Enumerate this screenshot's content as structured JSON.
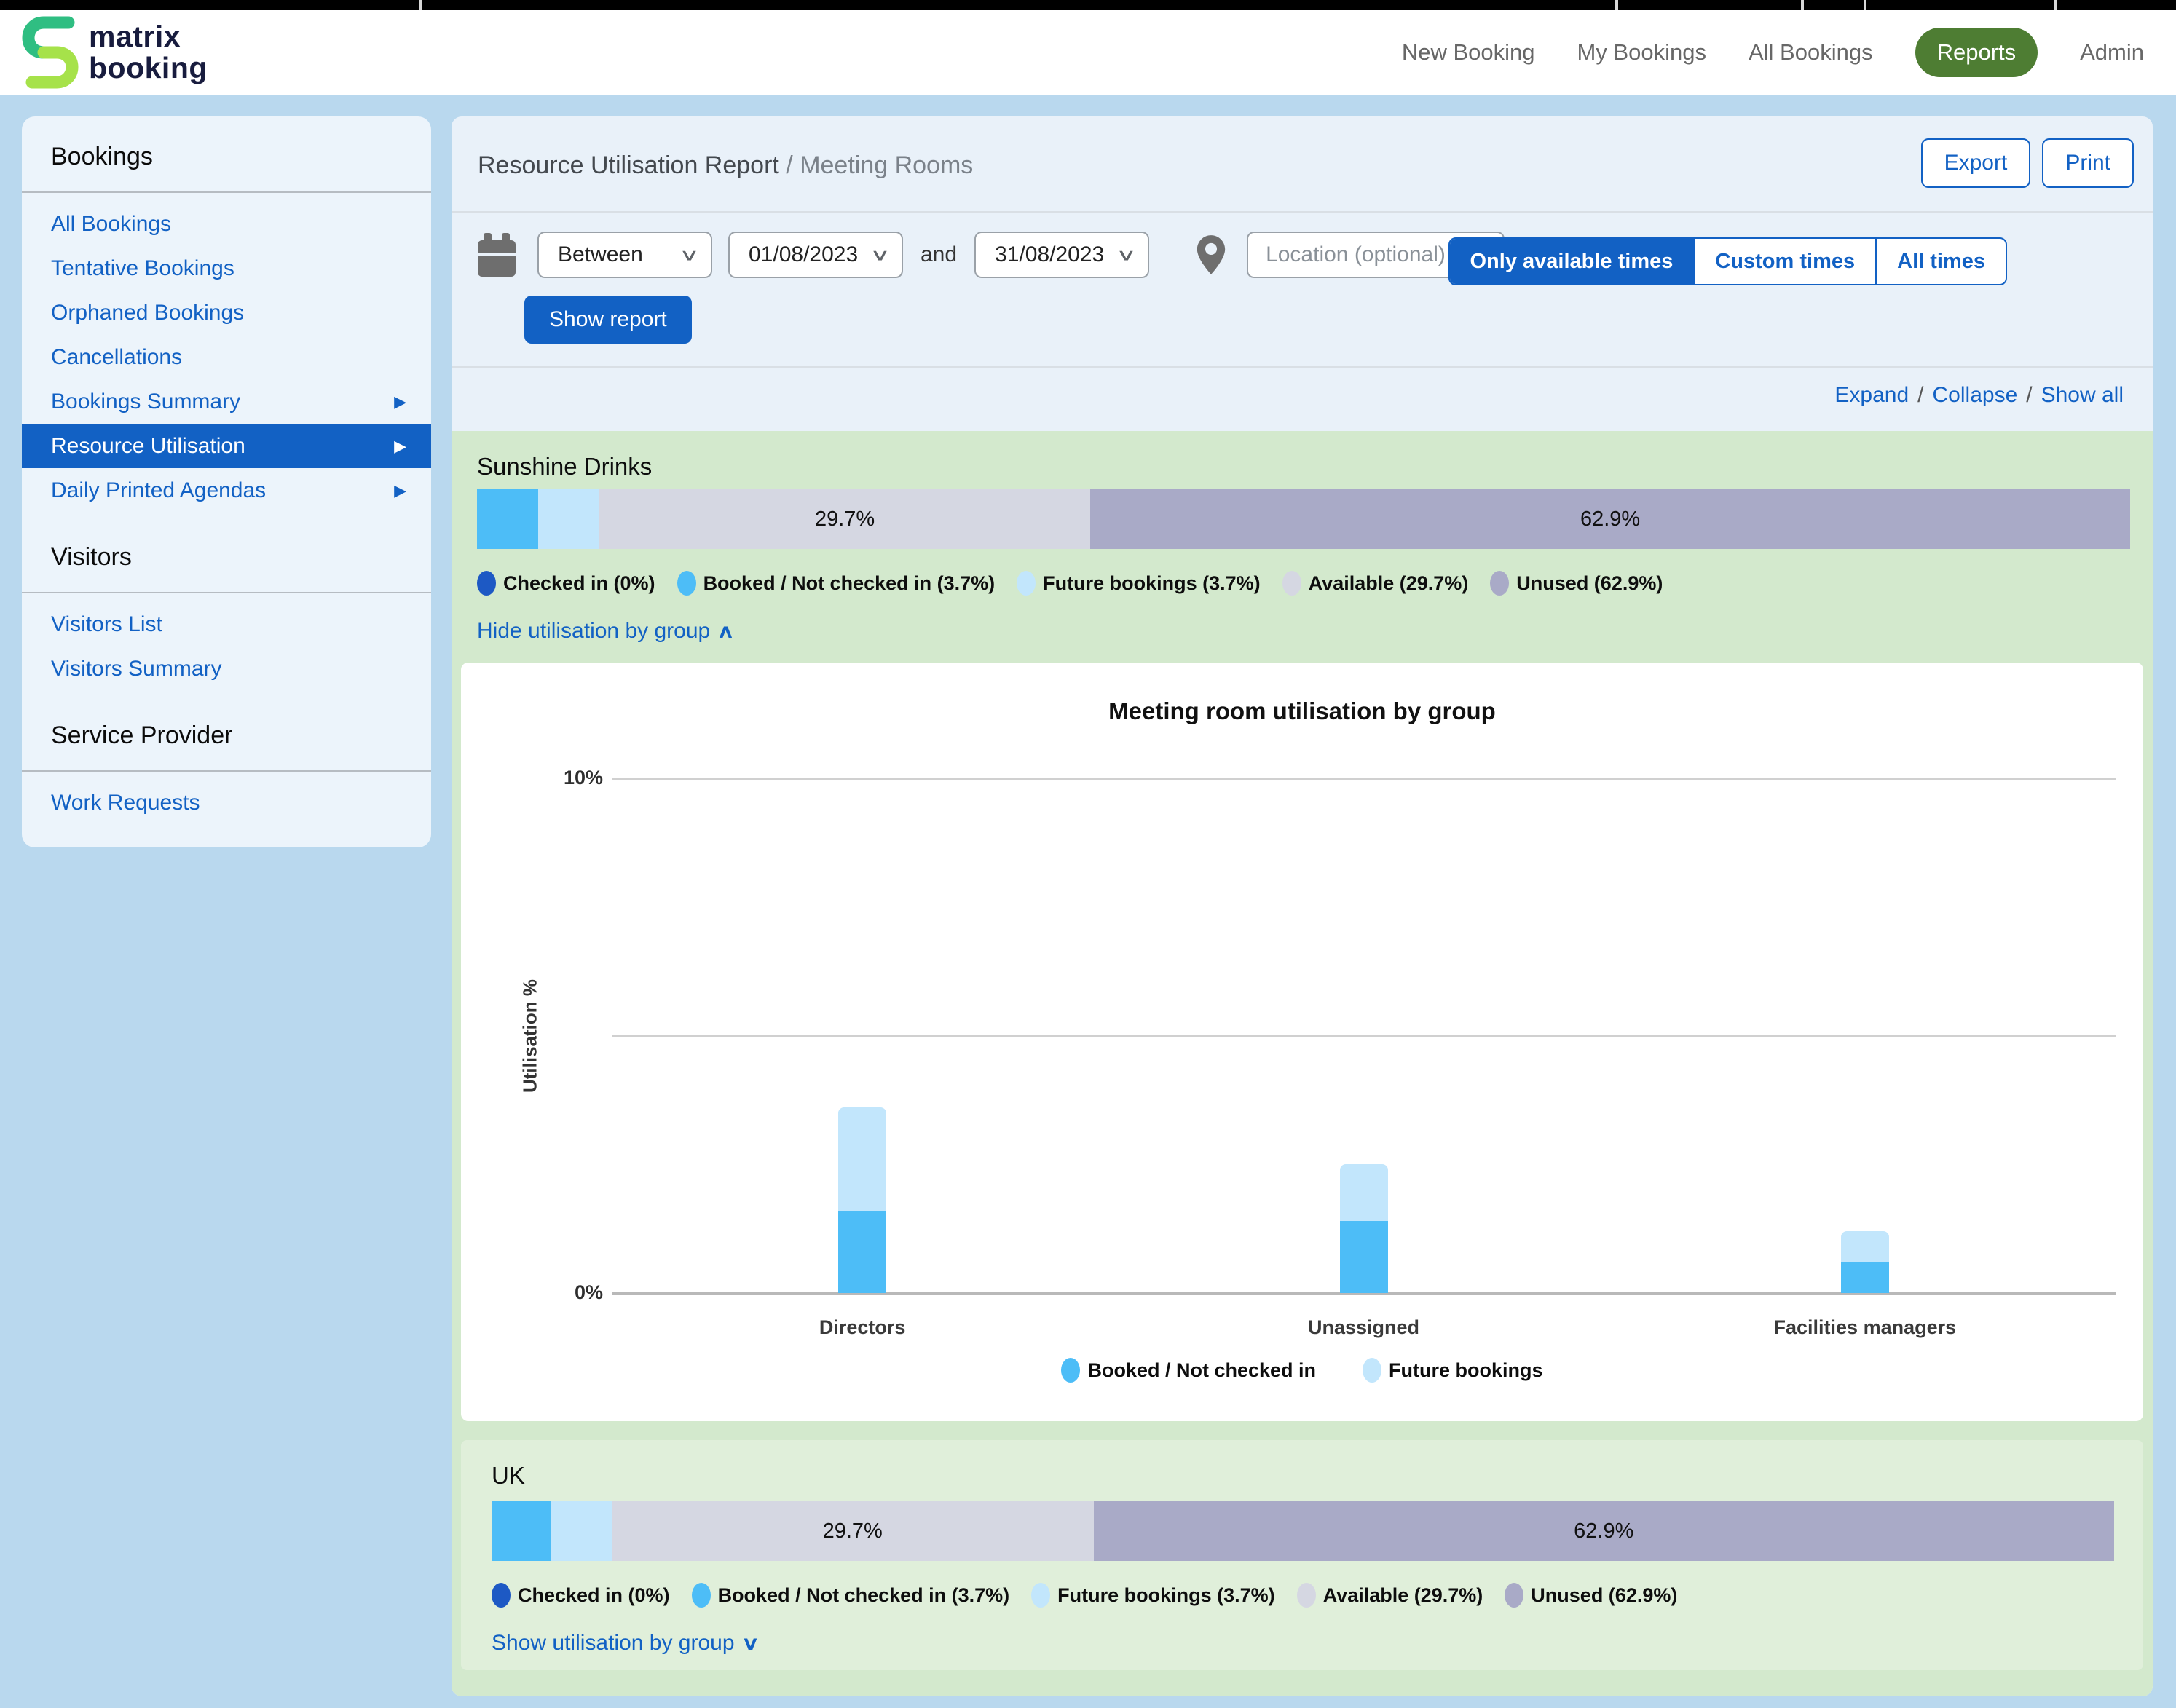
{
  "topbar": {
    "ticks": [
      576,
      2218,
      2473,
      2559,
      2821
    ]
  },
  "header": {
    "logo_line1": "matrix",
    "logo_line2": "booking",
    "nav": [
      {
        "label": "New Booking",
        "active": false
      },
      {
        "label": "My Bookings",
        "active": false
      },
      {
        "label": "All Bookings",
        "active": false
      },
      {
        "label": "Reports",
        "active": true
      },
      {
        "label": "Admin",
        "active": false
      }
    ]
  },
  "icon_glyphs": {
    "arrow_right": "▶",
    "chevron_down": "∨",
    "chevron_up": "∧",
    "select_chevron": "∨"
  },
  "sidebar": {
    "sections": [
      {
        "heading": "Bookings",
        "items": [
          {
            "label": "All Bookings"
          },
          {
            "label": "Tentative Bookings"
          },
          {
            "label": "Orphaned Bookings"
          },
          {
            "label": "Cancellations"
          },
          {
            "label": "Bookings Summary",
            "arrow": true
          },
          {
            "label": "Resource Utilisation",
            "arrow": true,
            "selected": true
          },
          {
            "label": "Daily Printed Agendas",
            "arrow": true
          }
        ]
      },
      {
        "heading": "Visitors",
        "items": [
          {
            "label": "Visitors List"
          },
          {
            "label": "Visitors Summary"
          }
        ]
      },
      {
        "heading": "Service Provider",
        "items": [
          {
            "label": "Work Requests"
          }
        ]
      }
    ]
  },
  "report": {
    "title": "Resource Utilisation Report ",
    "title_suffix": "/ Meeting Rooms",
    "export_label": "Export",
    "print_label": "Print",
    "filters": {
      "range_type": "Between",
      "date_from": "01/08/2023",
      "and_label": "and",
      "date_to": "31/08/2023",
      "location_placeholder": "Location (optional)",
      "time_options": [
        {
          "label": "Only available times",
          "active": true
        },
        {
          "label": "Custom times",
          "active": false
        },
        {
          "label": "All times",
          "active": false
        }
      ],
      "show_report_label": "Show report"
    },
    "links": {
      "expand": "Expand",
      "collapse": "Collapse",
      "show_all": "Show all",
      "separator": "/"
    }
  },
  "palette": {
    "accent_blue": "#1261c4",
    "reports_pill_green": "#4e7d33",
    "page_bg": "#b9d8ee",
    "panel_bg": "#e9f1f9",
    "group_bg": "#d3e9cd",
    "uk_card_bg": "#e0efda",
    "checked_in": "#1d59c4",
    "booked": "#4dbdf7",
    "future": "#c2e6fc",
    "available": "#d5d7e2",
    "unused": "#a9aac7"
  },
  "sections": [
    {
      "name": "Sunshine Drinks",
      "toggle_label": "Hide utilisation by group",
      "toggle_glyph": "∧",
      "bar_segments": [
        {
          "name": "Checked in",
          "value": 0,
          "color": "#1d59c4",
          "show_label": false
        },
        {
          "name": "Booked / Not checked in",
          "value": 3.7,
          "color": "#4dbdf7",
          "show_label": false
        },
        {
          "name": "Future bookings",
          "value": 3.7,
          "color": "#c2e6fc",
          "show_label": false
        },
        {
          "name": "Available",
          "value": 29.7,
          "color": "#d5d7e2",
          "show_label": true
        },
        {
          "name": "Unused",
          "value": 62.9,
          "color": "#a9aac7",
          "show_label": true
        }
      ],
      "legend": [
        {
          "label": "Checked in (0%)",
          "color": "#1d59c4"
        },
        {
          "label": "Booked / Not checked in (3.7%)",
          "color": "#4dbdf7"
        },
        {
          "label": "Future bookings (3.7%)",
          "color": "#c2e6fc"
        },
        {
          "label": "Available (29.7%)",
          "color": "#d5d7e2"
        },
        {
          "label": "Unused (62.9%)",
          "color": "#a9aac7"
        }
      ]
    },
    {
      "name": "UK",
      "toggle_label": "Show utilisation by group",
      "toggle_glyph": "∨",
      "bar_segments": [
        {
          "name": "Checked in",
          "value": 0,
          "color": "#1d59c4",
          "show_label": false
        },
        {
          "name": "Booked / Not checked in",
          "value": 3.7,
          "color": "#4dbdf7",
          "show_label": false
        },
        {
          "name": "Future bookings",
          "value": 3.7,
          "color": "#c2e6fc",
          "show_label": false
        },
        {
          "name": "Available",
          "value": 29.7,
          "color": "#d5d7e2",
          "show_label": true
        },
        {
          "name": "Unused",
          "value": 62.9,
          "color": "#a9aac7",
          "show_label": true
        }
      ],
      "legend": [
        {
          "label": "Checked in (0%)",
          "color": "#1d59c4"
        },
        {
          "label": "Booked / Not checked in (3.7%)",
          "color": "#4dbdf7"
        },
        {
          "label": "Future bookings (3.7%)",
          "color": "#c2e6fc"
        },
        {
          "label": "Available (29.7%)",
          "color": "#d5d7e2"
        },
        {
          "label": "Unused (62.9%)",
          "color": "#a9aac7"
        }
      ]
    }
  ],
  "chart_data": {
    "type": "bar",
    "stacked": true,
    "title": "Meeting room utilisation by group",
    "ylabel": "Utilisation %",
    "categories": [
      "Directors",
      "Unassigned",
      "Facilities managers"
    ],
    "series": [
      {
        "name": "Booked / Not checked in",
        "color": "#4dbdf7",
        "values": [
          1.6,
          1.4,
          0.6
        ]
      },
      {
        "name": "Future bookings",
        "color": "#c2e6fc",
        "values": [
          2.0,
          1.1,
          0.6
        ]
      }
    ],
    "ylim": [
      0,
      10
    ],
    "yticks": [
      {
        "value": 0,
        "label": "0%"
      },
      {
        "value": 5,
        "label": ""
      },
      {
        "value": 10,
        "label": "10%"
      }
    ],
    "grid": true,
    "legend_position": "bottom"
  }
}
